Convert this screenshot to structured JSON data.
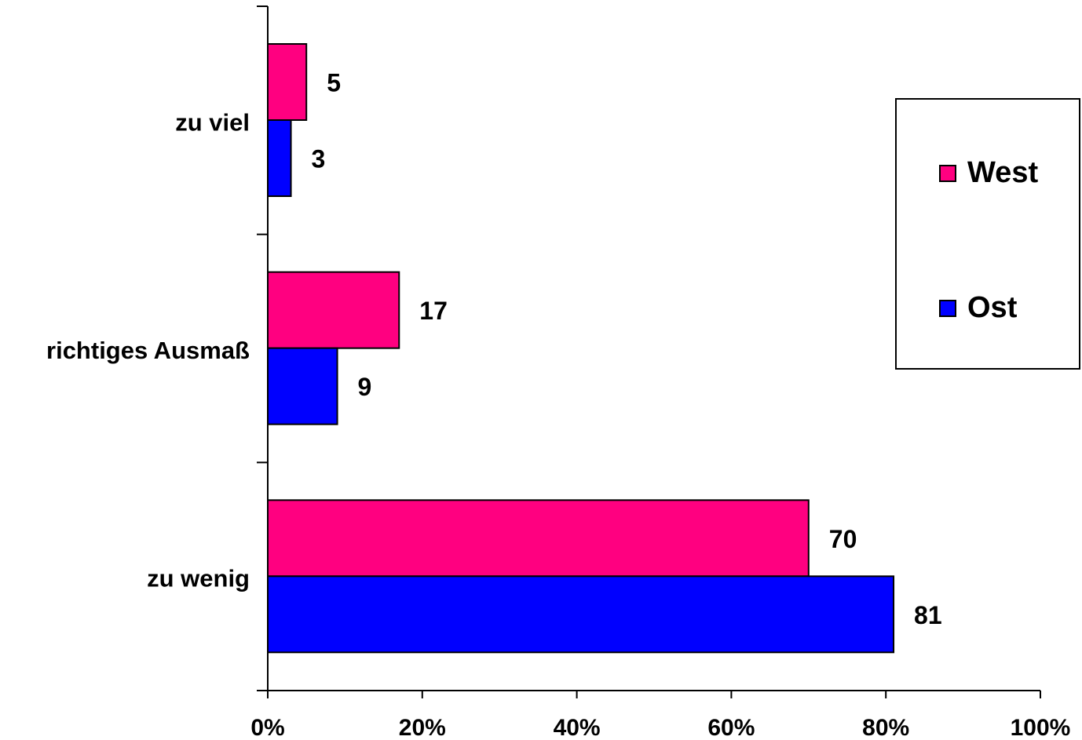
{
  "chart_data": {
    "type": "bar",
    "orientation": "horizontal",
    "categories": [
      "zu viel",
      "richtiges Ausmaß",
      "zu wenig"
    ],
    "series": [
      {
        "name": "West",
        "values": [
          5,
          17,
          70
        ],
        "color": "#FF0080"
      },
      {
        "name": "Ost",
        "values": [
          3,
          9,
          81
        ],
        "color": "#0000FF"
      }
    ],
    "xticks": [
      "0%",
      "20%",
      "40%",
      "60%",
      "80%",
      "100%"
    ],
    "xlim": [
      0,
      100
    ],
    "data_labels": true,
    "grid": false,
    "legend_position": "right"
  },
  "legend": {
    "west": "West",
    "ost": "Ost"
  }
}
